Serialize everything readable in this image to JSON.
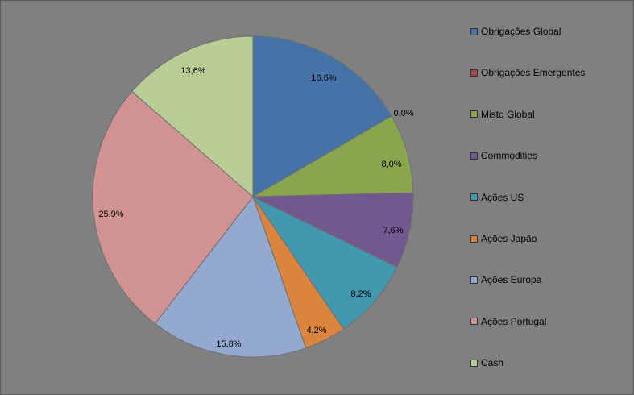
{
  "chart_data": {
    "type": "pie",
    "categories": [
      "Obrigações Global",
      "Obrigações Emergentes",
      "Misto Global",
      "Commodities",
      "Ações US",
      "Ações Japão",
      "Ações Europa",
      "Ações Portugal",
      "Cash"
    ],
    "values": [
      16.6,
      0.0,
      8.0,
      7.6,
      8.2,
      4.2,
      15.8,
      25.9,
      13.6
    ],
    "value_labels": [
      "16,6%",
      "0,0%",
      "8,0%",
      "7,6%",
      "8,2%",
      "4,2%",
      "15,8%",
      "25,9%",
      "13,6%"
    ],
    "colors": [
      "#4572A7",
      "#AA4643",
      "#89A54E",
      "#71588F",
      "#4198AF",
      "#DB843D",
      "#93A9CF",
      "#D19392",
      "#B9CD96"
    ],
    "legend_position": "right",
    "title": ""
  }
}
